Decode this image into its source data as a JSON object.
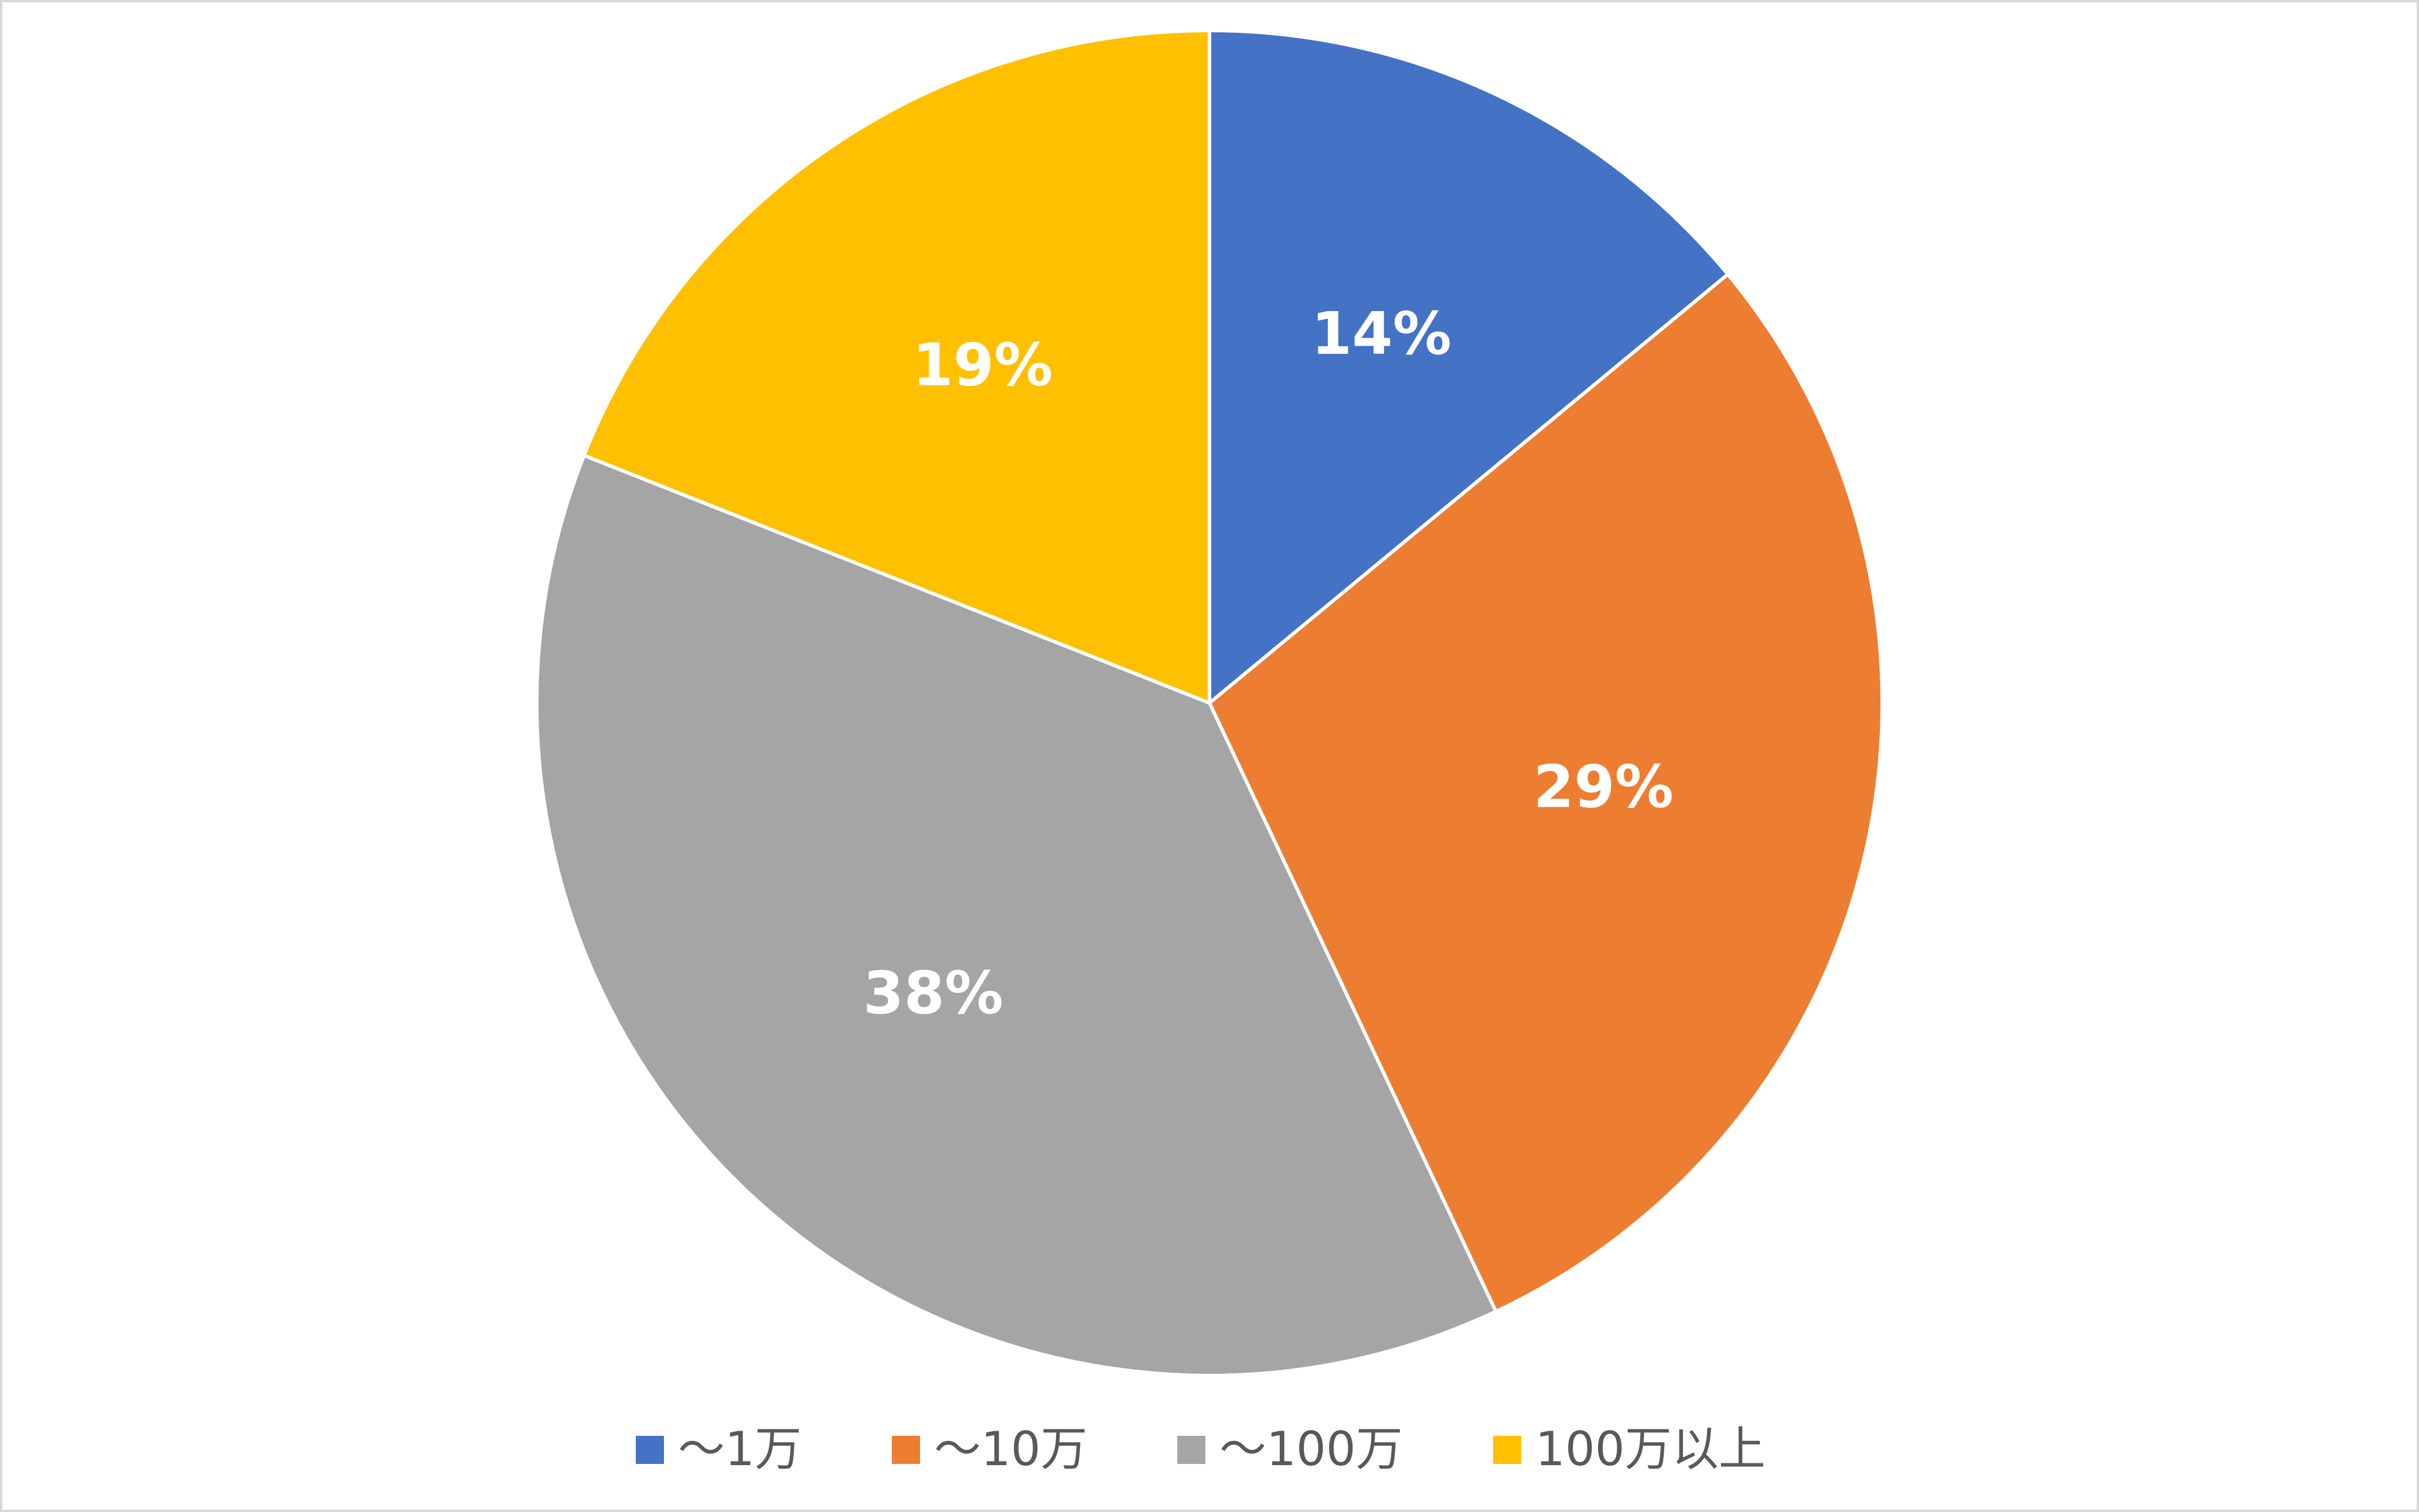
{
  "chart_data": {
    "type": "pie",
    "categories": [
      "～1万",
      "～10万",
      "～100万",
      "100万以上"
    ],
    "values": [
      14,
      29,
      38,
      19
    ],
    "value_labels": [
      "14%",
      "29%",
      "38%",
      "19%"
    ],
    "colors": [
      "#4472c4",
      "#ed7d31",
      "#a5a5a5",
      "#ffc000"
    ],
    "legend": "bottom"
  }
}
